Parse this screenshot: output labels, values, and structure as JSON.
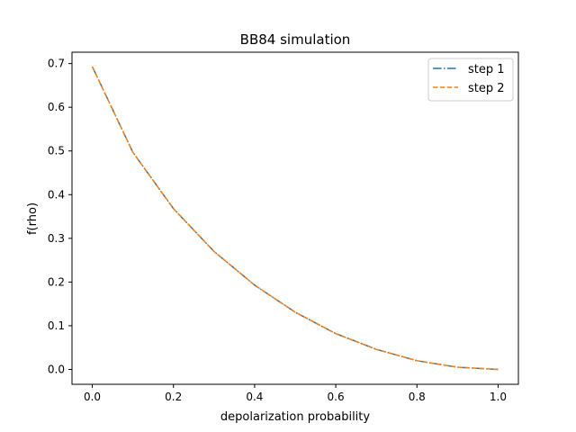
{
  "chart_data": {
    "type": "line",
    "title": "BB84 simulation",
    "xlabel": "depolarization probability",
    "ylabel": "f(rho)",
    "x": [
      0.0,
      0.1,
      0.2,
      0.3,
      0.4,
      0.5,
      0.6,
      0.7,
      0.8,
      0.9,
      1.0
    ],
    "xlim": [
      -0.05,
      1.05
    ],
    "ylim": [
      -0.034,
      0.726
    ],
    "xticks": [
      "0.0",
      "0.2",
      "0.4",
      "0.6",
      "0.8",
      "1.0"
    ],
    "yticks": [
      "0.0",
      "0.1",
      "0.2",
      "0.3",
      "0.4",
      "0.5",
      "0.6",
      "0.7"
    ],
    "grid": false,
    "legend_position": "top-right",
    "series": [
      {
        "name": "step 1",
        "color": "#1f77b4",
        "linestyle": "dashdot",
        "values": [
          0.693,
          0.497,
          0.368,
          0.27,
          0.193,
          0.131,
          0.082,
          0.046,
          0.02,
          0.005,
          0.0
        ]
      },
      {
        "name": "step 2",
        "color": "#ff7f0e",
        "linestyle": "dashed",
        "values": [
          0.693,
          0.497,
          0.368,
          0.27,
          0.193,
          0.131,
          0.082,
          0.046,
          0.02,
          0.005,
          0.0
        ]
      }
    ]
  }
}
